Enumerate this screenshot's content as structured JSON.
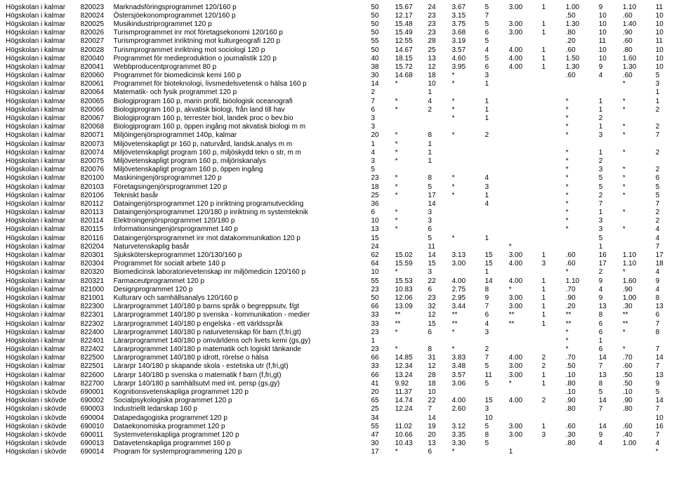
{
  "rows": [
    [
      "Högskolan i kalmar",
      "820023",
      "Marknadsföringsprogrammet 120/160 p",
      "50",
      "15.67",
      "24",
      "3.67",
      "5",
      "3.00",
      "1",
      "1.00",
      "9",
      "1.10",
      "11"
    ],
    [
      "Högskolan i kalmar",
      "820024",
      "Östersjöekonomprogrammet 120/160 p",
      "50",
      "12.17",
      "23",
      "3.15",
      "7",
      "",
      "",
      ".50",
      "10",
      ".60",
      "10"
    ],
    [
      "Högskolan i kalmar",
      "820025",
      "Musikindustriprogrammet 120 p",
      "50",
      "15.48",
      "23",
      "3.75",
      "5",
      "3.00",
      "1",
      "1.30",
      "10",
      "1.40",
      "10"
    ],
    [
      "Högskolan i kalmar",
      "820026",
      "Turismprogrammet inr mot företagsekonomi 120/160 p",
      "50",
      "15.49",
      "23",
      "3.68",
      "6",
      "3.00",
      "1",
      ".80",
      "10",
      ".90",
      "10"
    ],
    [
      "Högskolan i kalmar",
      "820027",
      "Turismprogrammet inriktning mot kulturgeografi 120 p",
      "55",
      "12.55",
      "28",
      "3.19",
      "5",
      "",
      "",
      ".20",
      "11",
      ".60",
      "11"
    ],
    [
      "Högskolan i kalmar",
      "820028",
      "Turismprogrammet inriktning mot sociologi 120 p",
      "50",
      "14.67",
      "25",
      "3.57",
      "4",
      "4.00",
      "1",
      ".60",
      "10",
      ".80",
      "10"
    ],
    [
      "Högskolan i kalmar",
      "820040",
      "Programmet för medieproduktion o journalistik 120 p",
      "40",
      "18.15",
      "13",
      "4.60",
      "5",
      "4.00",
      "1",
      "1.50",
      "10",
      "1.60",
      "10"
    ],
    [
      "Högskolan i kalmar",
      "820041",
      "Webbproducentprogrammet 80 p",
      "38",
      "15.72",
      "12",
      "3.95",
      "6",
      "4.00",
      "1",
      "1.30",
      "9",
      "1.30",
      "10"
    ],
    [
      "Högskolan i kalmar",
      "820060",
      "Programmet för biomedicinsk kemi 160 p",
      "30",
      "14.68",
      "18",
      "*",
      "3",
      "",
      "",
      ".60",
      "4",
      ".60",
      "5"
    ],
    [
      "Högskolan i kalmar",
      "820061",
      "Programmet för bioteknologi, livsmedelsvetensk o hälsa 160 p",
      "14",
      "*",
      "10",
      "*",
      "1",
      "",
      "",
      "",
      "",
      "*",
      "3"
    ],
    [
      "Högskolan i kalmar",
      "820064",
      "Matematik- och fysik programmet 120 p",
      "2",
      "",
      "1",
      "",
      "",
      "",
      "",
      "",
      "",
      "",
      "1"
    ],
    [
      "Högskolan i kalmar",
      "820065",
      "Biologiprogram 160 p, marin profil, biöologisk oceanografi",
      "7",
      "*",
      "4",
      "*",
      "1",
      "",
      "",
      "*",
      "1",
      "*",
      "1"
    ],
    [
      "Högskolan i kalmar",
      "820066",
      "Biologiprogram 160 p, akvatisk biologi, från land till hav",
      "6",
      "*",
      "2",
      "*",
      "1",
      "",
      "",
      "*",
      "1",
      "*",
      "2"
    ],
    [
      "Högskolan i kalmar",
      "820067",
      "Biologiprogram 160 p, terrester biol, landek proc o bev.bio",
      "3",
      "",
      "",
      "*",
      "1",
      "",
      "",
      "*",
      "2",
      "",
      ""
    ],
    [
      "Högskolan i kalmar",
      "820068",
      "Biologiprogram 160 p, öppen ingång mot akvatisk biologi m m",
      "3",
      "",
      "",
      "",
      "",
      "",
      "",
      "*",
      "1",
      "*",
      "2"
    ],
    [
      "Högskolan i kalmar",
      "820071",
      "Miljöingenjörsprogrammet 140p, kalmar",
      "20",
      "*",
      "8",
      "*",
      "2",
      "",
      "",
      "*",
      "3",
      "*",
      "7"
    ],
    [
      "Högskolan i kalmar",
      "820073",
      "Miljövetenskapligt pr 160 p, naturvård, landsk.analys m m",
      "1",
      "*",
      "1",
      "",
      "",
      "",
      "",
      "",
      "",
      "",
      ""
    ],
    [
      "Högskolan i kalmar",
      "820074",
      "Miljövetenskapligt program 160 p, miljöskydd tekn o str, m m",
      "4",
      "*",
      "1",
      "",
      "",
      "",
      "",
      "*",
      "1",
      "*",
      "2"
    ],
    [
      "Högskolan i kalmar",
      "820075",
      "Miljövetenskapligt program 160 p, miljöriskanalys",
      "3",
      "*",
      "1",
      "",
      "",
      "",
      "",
      "*",
      "2",
      "",
      ""
    ],
    [
      "Högskolan i kalmar",
      "820076",
      "Miljövetenskapligt program 160 p, öppen ingång",
      "5",
      "",
      "",
      "",
      "",
      "",
      "",
      "*",
      "3",
      "*",
      "2"
    ],
    [
      "Högskolan i kalmar",
      "820100",
      "Maskiningenjörsprogrammet 120 p",
      "23",
      "*",
      "8",
      "*",
      "4",
      "",
      "",
      "*",
      "5",
      "*",
      "6"
    ],
    [
      "Högskolan i kalmar",
      "820103",
      "Företagsingenjörsprogrammet 120 p",
      "18",
      "*",
      "5",
      "*",
      "3",
      "",
      "",
      "*",
      "5",
      "*",
      "5"
    ],
    [
      "Högskolan i kalmar",
      "820106",
      "Tekniskt basår",
      "25",
      "*",
      "17",
      "*",
      "1",
      "",
      "",
      "*",
      "2",
      "*",
      "5"
    ],
    [
      "Högskolan i kalmar",
      "820112",
      "Dataingenjörsprogrammet 120 p inriktning programutveckling",
      "36",
      "",
      "14",
      "",
      "4",
      "",
      "",
      "*",
      "7",
      "",
      "7"
    ],
    [
      "Högskolan i kalmar",
      "820113",
      "Dataingenjörsprogrammet 120/180 p inriktning m systemteknik",
      "6",
      "*",
      "3",
      "",
      "",
      "",
      "",
      "*",
      "1",
      "*",
      "2"
    ],
    [
      "Högskolan i kalmar",
      "820114",
      "Elektroingenjörsprogrammet 120/180 p",
      "10",
      "*",
      "3",
      "",
      "",
      "",
      "",
      "*",
      "3",
      "",
      "2"
    ],
    [
      "Högskolan i kalmar",
      "820115",
      "Informationsingenjörsprogrammet 140 p",
      "13",
      "*",
      "6",
      "",
      "",
      "",
      "",
      "*",
      "3",
      "*",
      "4"
    ],
    [
      "Högskolan i kalmar",
      "820116",
      "Dataingenjörsprogrammet inr mot datakommunikation 120 p",
      "15",
      "",
      "5",
      "*",
      "1",
      "",
      "",
      "",
      "5",
      "",
      "4"
    ],
    [
      "Högskolan i kalmar",
      "820204",
      "Naturvetenskaplig basår",
      "24",
      "",
      "11",
      "",
      "",
      "*",
      "",
      "",
      "1",
      "",
      "7",
      "*",
      "5"
    ],
    [
      "Högskolan i kalmar",
      "820301",
      "Sjuksköterskeprogrammet 120/130/160 p",
      "62",
      "15.02",
      "14",
      "3.13",
      "15",
      "3.00",
      "1",
      ".60",
      "16",
      "1.10",
      "17"
    ],
    [
      "Högskolan i kalmar",
      "820304",
      "Programmet för socialt arbete 140 p",
      "64",
      "15.59",
      "15",
      "3.00",
      "15",
      "4.00",
      "3",
      ".60",
      "17",
      "1.10",
      "18"
    ],
    [
      "Högskolan i kalmar",
      "820320",
      "Biomedicinsk laboratorievetenskap inr miljömedicin 120/160 p",
      "10",
      "*",
      "3",
      "",
      "1",
      "",
      "",
      "*",
      "2",
      "*",
      "4"
    ],
    [
      "Högskolan i kalmar",
      "820321",
      "Farmaceutprogrammet 120 p",
      "55",
      "15.53",
      "22",
      "4.00",
      "14",
      "4.00",
      "1",
      "1.10",
      "9",
      "1.60",
      "9"
    ],
    [
      "Högskolan i kalmar",
      "821000",
      "Designprogrammet 120 p",
      "23",
      "10.83",
      "6",
      "2.75",
      "8",
      "*",
      "1",
      ".70",
      "4",
      ".90",
      "4"
    ],
    [
      "Högskolan i kalmar",
      "821001",
      "Kulturarv och samhällsanalys 120/160 p",
      "50",
      "12.06",
      "23",
      "2.95",
      "9",
      "3.00",
      "1",
      ".90",
      "9",
      "1.00",
      "8"
    ],
    [
      "Högskolan i kalmar",
      "822300",
      "Lärarprogrammet 140/180 p barns språk o begreppsutv, f/gt",
      "66",
      "13.09",
      "32",
      "3.44",
      "7",
      "3.00",
      "1",
      ".20",
      "13",
      ".30",
      "13"
    ],
    [
      "Högskolan i kalmar",
      "822301",
      "Lärarprogrammet 140/180 p svenska - kommunikation - medier",
      "33",
      "**",
      "12",
      "**",
      "6",
      "**",
      "1",
      "**",
      "8",
      "**",
      "6"
    ],
    [
      "Högskolan i kalmar",
      "822302",
      "Lärarprogrammet 140/180 p engelska - ett världsspråk",
      "33",
      "**",
      "15",
      "**",
      "4",
      "**",
      "1",
      "**",
      "6",
      "**",
      "7"
    ],
    [
      "Högskolan i kalmar",
      "822400",
      "Lärarprogrammet 140/180 p naturvetenskap för barn (f,fri,gt)",
      "23",
      "*",
      "6",
      "*",
      "3",
      "",
      "",
      "*",
      "6",
      "*",
      "8"
    ],
    [
      "Högskolan i kalmar",
      "822401",
      "Lärarprogrammet 140/180 p omvärldens och livets kemi (gs,gy)",
      "1",
      "",
      "",
      "",
      "",
      "",
      "",
      "*",
      "1",
      "",
      ""
    ],
    [
      "Högskolan i kalmar",
      "822402",
      "Lärarprogrammet 140/180 p matematik och logiskt tänkande",
      "23",
      "*",
      "8",
      "*",
      "2",
      "",
      "",
      "*",
      "6",
      "*",
      "7"
    ],
    [
      "Högskolan i kalmar",
      "822500",
      "Lärarprogrammet 140/180 p idrott, rörelse o hälsa",
      "66",
      "14.85",
      "31",
      "3.83",
      "7",
      "4.00",
      "2",
      ".70",
      "14",
      ".70",
      "14"
    ],
    [
      "Högskolan i kalmar",
      "822501",
      "Lärarpr 140/180 p skapande skola - estetiska utr (f,fri,gt)",
      "33",
      "12.34",
      "12",
      "3.48",
      "5",
      "3.00",
      "2",
      ".50",
      "7",
      ".60",
      "7"
    ],
    [
      "Högskolan i kalmar",
      "822600",
      "Lärarpr 140/180 p svenska o matematik f barn (f,fri,gt)",
      "66",
      "13.24",
      "28",
      "3.57",
      "11",
      "3.00",
      "1",
      ".10",
      "13",
      ".50",
      "13"
    ],
    [
      "Högskolan i kalmar",
      "822700",
      "Lärarpr 140/180 p samhällsutvl med int. persp (gs,gy)",
      "41",
      "9.92",
      "18",
      "3.06",
      "5",
      "*",
      "1",
      ".80",
      "8",
      ".50",
      "9"
    ],
    [
      "Högskolan i skövde",
      "690001",
      "Kognitionsvetenskapliga programmet 120 p",
      "20",
      "11.37",
      "10",
      "",
      "",
      "",
      "",
      ".10",
      "5",
      ".10",
      "5"
    ],
    [
      "Högskolan i skövde",
      "690002",
      "Socialpsykologiska programmet 120 p",
      "65",
      "14.74",
      "22",
      "4.00",
      "15",
      "4.00",
      "2",
      ".90",
      "14",
      ".90",
      "14"
    ],
    [
      "Högskolan i skövde",
      "690003",
      "Industriellt ledarskap 160 p",
      "25",
      "12.24",
      "7",
      "2.60",
      "3",
      "",
      "",
      ".80",
      "7",
      ".80",
      "7"
    ],
    [
      "Högskolan i skövde",
      "690004",
      "Datapedagogiska programmet 120 p",
      "34",
      "",
      "14",
      "",
      "10",
      "",
      "",
      "",
      "",
      "",
      "10"
    ],
    [
      "Högskolan i skövde",
      "690010",
      "Dataekonomiska programmet 120 p",
      "55",
      "11.02",
      "19",
      "3.12",
      "5",
      "3.00",
      "1",
      ".60",
      "14",
      ".60",
      "16"
    ],
    [
      "Högskolan i skövde",
      "690011",
      "Systemvetenskapliga programmet 120 p",
      "47",
      "10.66",
      "20",
      "3.35",
      "8",
      "3.00",
      "3",
      ".30",
      "9",
      ".40",
      "7"
    ],
    [
      "Högskolan i skövde",
      "690013",
      "Datavetenskapliga programmet 160 p",
      "30",
      "10.43",
      "13",
      "3.30",
      "5",
      "",
      "",
      ".80",
      "4",
      "1.00",
      "4"
    ],
    [
      "Högskolan i skövde",
      "690014",
      "Program för systemprogrammering 120 p",
      "17",
      "*",
      "6",
      "*",
      "",
      "1",
      "",
      "",
      "",
      "",
      "*",
      "5",
      "*",
      "5"
    ]
  ]
}
